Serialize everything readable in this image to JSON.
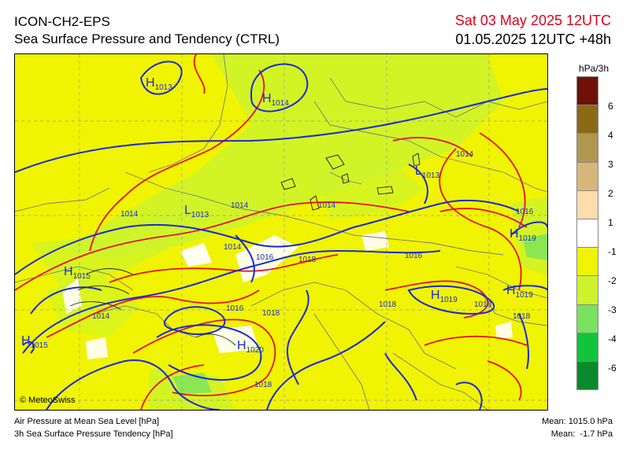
{
  "header": {
    "model": "ICON-CH2-EPS",
    "product": "Sea Surface Pressure and Tendency (CTRL)",
    "valid_time": "Sat 03 May 2025 12UTC",
    "run_time": "01.05.2025 12UTC +48h"
  },
  "legend": {
    "unit": "hPa/3h",
    "boxes": [
      {
        "color": "#6e1208",
        "label": "6"
      },
      {
        "color": "#8a6a14",
        "label": "4"
      },
      {
        "color": "#b09650",
        "label": "3"
      },
      {
        "color": "#d8b67a",
        "label": "2"
      },
      {
        "color": "#fedcab",
        "label": "1"
      },
      {
        "color": "#ffffff",
        "label": "-1"
      },
      {
        "color": "#f0f400",
        "label": "-2"
      },
      {
        "color": "#cdf32c",
        "label": "-3"
      },
      {
        "color": "#79e25e",
        "label": "-4"
      },
      {
        "color": "#12c43b",
        "label": "-6"
      },
      {
        "color": "#0a8a2c",
        "label": ""
      }
    ]
  },
  "map": {
    "copyright": "© MeteoSwiss",
    "pressure_centers": [
      {
        "type": "H",
        "value": "1013"
      },
      {
        "type": "H",
        "value": "1014"
      },
      {
        "type": "L",
        "value": "1013"
      },
      {
        "type": "L",
        "value": "1013"
      },
      {
        "type": "H",
        "value": "1015"
      },
      {
        "type": "H",
        "value": "1015"
      },
      {
        "type": "H",
        "value": "1019"
      },
      {
        "type": "H",
        "value": "1019"
      },
      {
        "type": "H",
        "value": "1019"
      },
      {
        "type": "H",
        "value": "1020"
      }
    ],
    "isobar_labels": [
      "1014",
      "1014",
      "1014",
      "1014",
      "1014",
      "1014",
      "1016",
      "1016",
      "1016",
      "1016",
      "1018",
      "1018",
      "1018",
      "1018",
      "1018",
      "1018"
    ]
  },
  "footer": {
    "line1": "Air Pressure at Mean Sea Level [hPa]",
    "line2": "3h Sea Surface Pressure Tendency [hPa]",
    "mean_pressure": "Mean: 1015.0 hPa",
    "mean_tendency": "Mean:  -1.7 hPa"
  }
}
